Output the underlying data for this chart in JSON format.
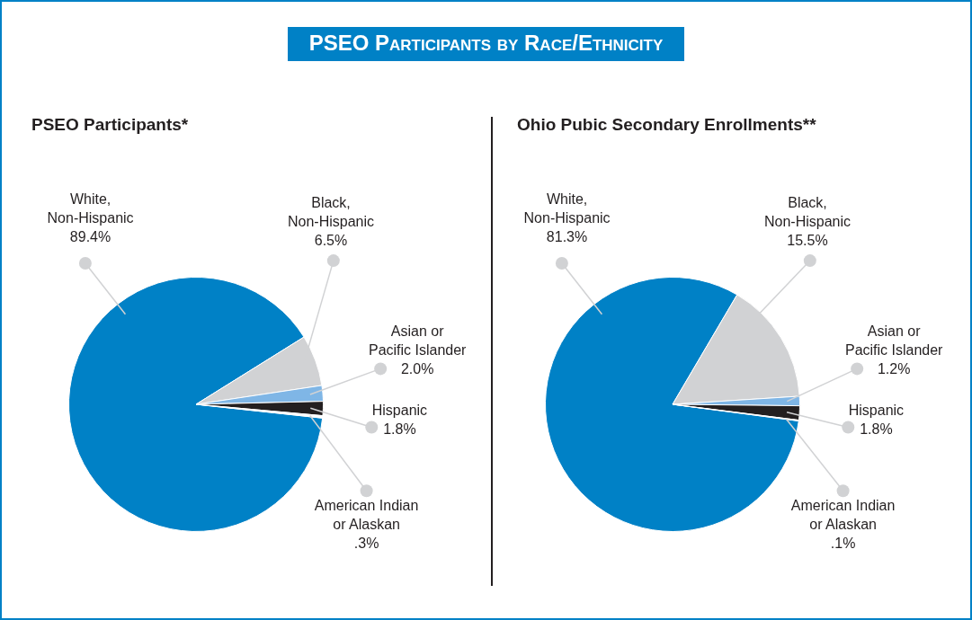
{
  "chart_data": [
    {
      "type": "pie",
      "title": "PSEO Participants*",
      "annotations": [
        "PSEO Participants by Race/Ethnicity"
      ],
      "categories": [
        "White, Non-Hispanic",
        "Black, Non-Hispanic",
        "Asian or Pacific Islander",
        "Hispanic",
        "American Indian or Alaskan"
      ],
      "values": [
        89.4,
        6.5,
        2.0,
        1.8,
        0.3
      ],
      "value_labels": [
        "89.4%",
        "6.5%",
        "2.0%",
        "1.8%",
        ".3%"
      ],
      "colors": [
        "#0081c6",
        "#d1d2d4",
        "#7fb6e6",
        "#231f20",
        "#ffffff"
      ]
    },
    {
      "type": "pie",
      "title": "Ohio Pubic Secondary Enrollments**",
      "categories": [
        "White, Non-Hispanic",
        "Black, Non-Hispanic",
        "Asian or Pacific Islander",
        "Hispanic",
        "American Indian or Alaskan"
      ],
      "values": [
        81.3,
        15.5,
        1.2,
        1.8,
        0.1
      ],
      "value_labels": [
        "81.3%",
        "15.5%",
        "1.2%",
        "1.8%",
        ".1%"
      ],
      "colors": [
        "#0081c6",
        "#d1d2d4",
        "#7fb6e6",
        "#231f20",
        "#ffffff"
      ]
    }
  ]
}
